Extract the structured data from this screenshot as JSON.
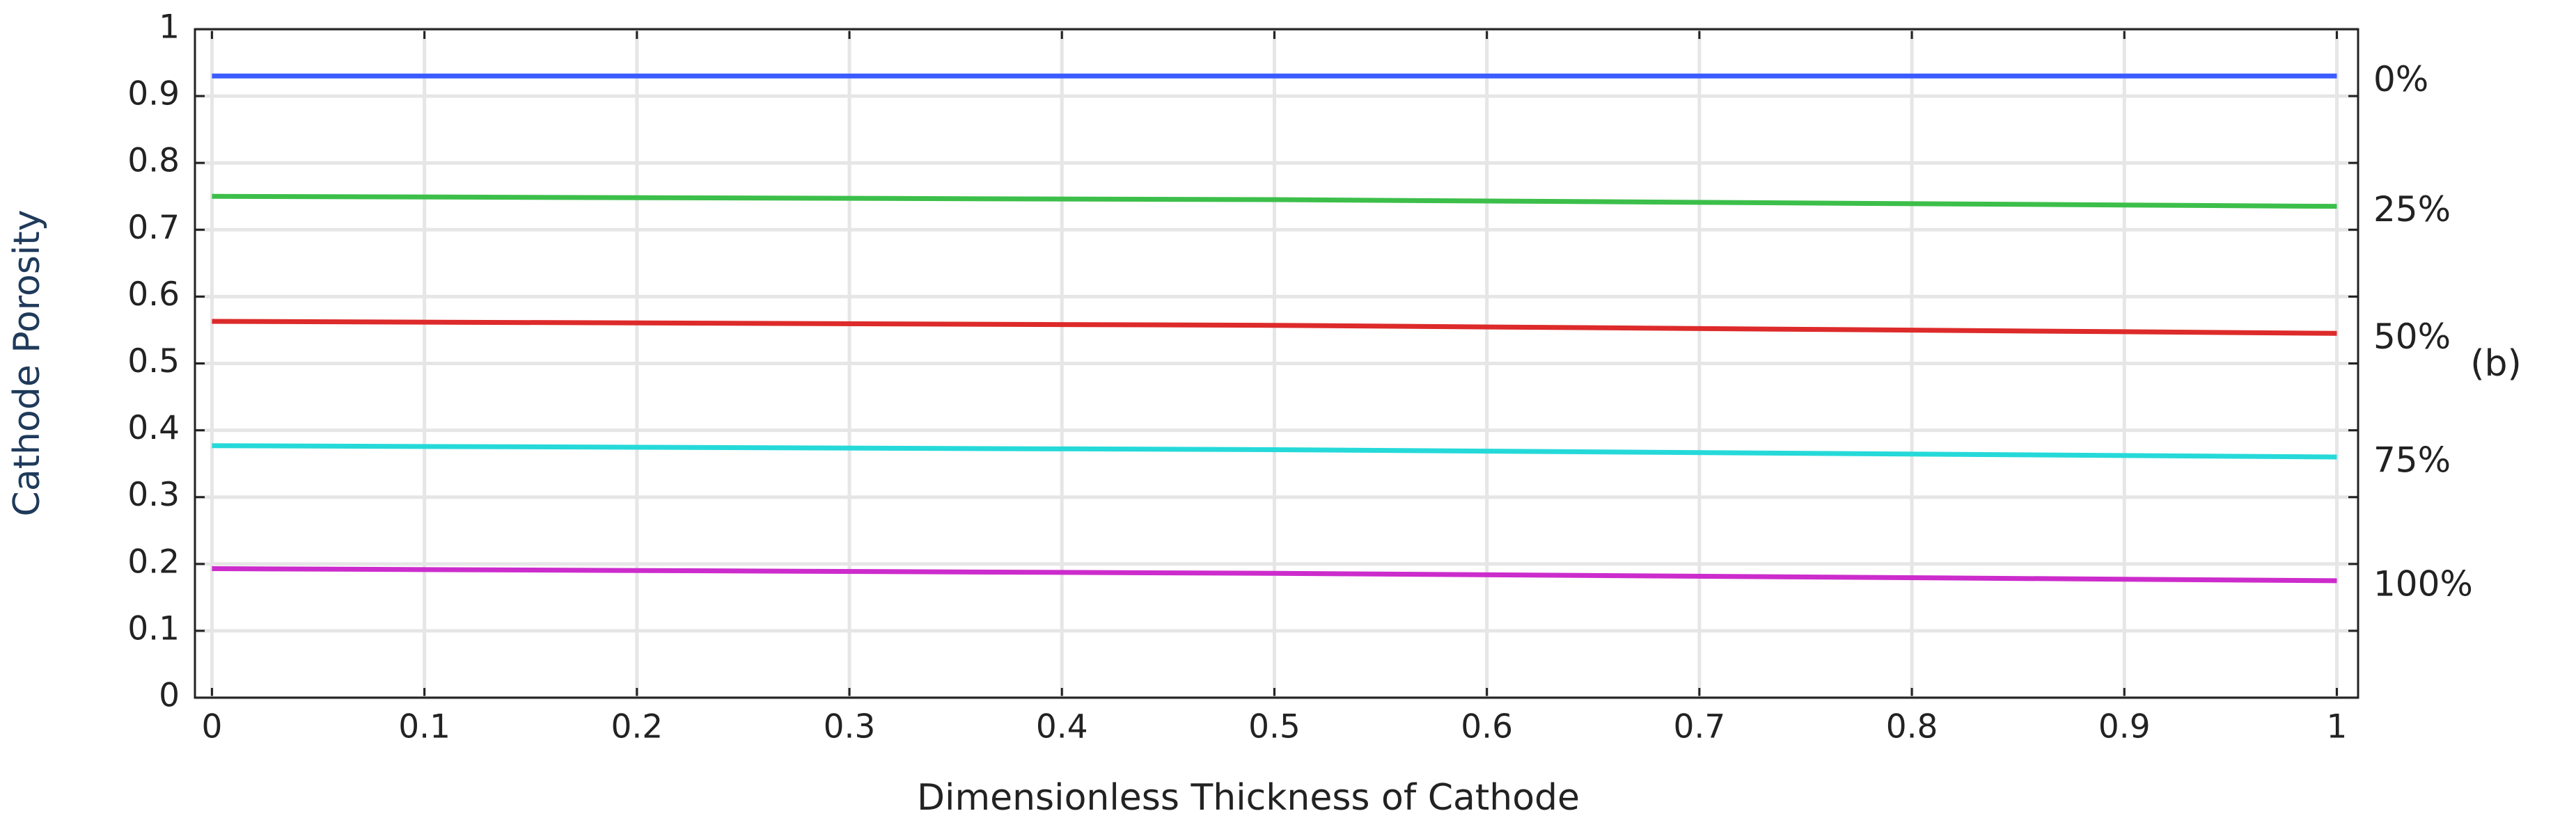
{
  "chart_data": {
    "type": "line",
    "xlabel": "Dimensionless Thickness of Cathode",
    "ylabel": "Cathode Porosity",
    "annotation": "(b)",
    "x": [
      0,
      0.5,
      1
    ],
    "series": [
      {
        "name": "0%",
        "color": "#3a5cff",
        "values": [
          0.93,
          0.93,
          0.93
        ]
      },
      {
        "name": "25%",
        "color": "#3cbf4a",
        "values": [
          0.75,
          0.745,
          0.735
        ]
      },
      {
        "name": "50%",
        "color": "#dd2a2a",
        "values": [
          0.563,
          0.557,
          0.545
        ]
      },
      {
        "name": "75%",
        "color": "#26d9d9",
        "values": [
          0.377,
          0.371,
          0.36
        ]
      },
      {
        "name": "100%",
        "color": "#cc2ccc",
        "values": [
          0.193,
          0.186,
          0.175
        ]
      }
    ],
    "xlim": [
      -0.008,
      1.01
    ],
    "ylim": [
      0,
      1
    ],
    "xticks": [
      0,
      0.1,
      0.2,
      0.3,
      0.4,
      0.5,
      0.6,
      0.7,
      0.8,
      0.9,
      1
    ],
    "yticks": [
      0,
      0.1,
      0.2,
      0.3,
      0.4,
      0.5,
      0.6,
      0.7,
      0.8,
      0.9,
      1
    ],
    "grid": true
  }
}
